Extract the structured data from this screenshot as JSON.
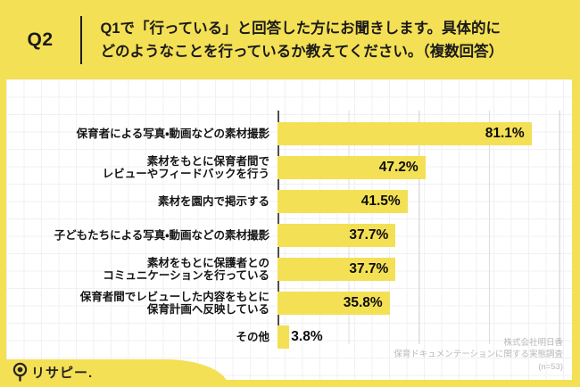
{
  "header": {
    "q_label": "Q2",
    "question_line1": "Q1で「行っている」と回答した方にお聞きします。具体的に",
    "question_line2": "どのようなことを行っているか教えてください。（複数回答）"
  },
  "chart_data": {
    "type": "bar",
    "orientation": "horizontal",
    "title": "Q2 具体的にどのようなことを行っているか（複数回答）",
    "categories": [
      "保育者による写真・動画などの素材撮影",
      "素材をもとに保育者間で\nレビューやフィードバックを行う",
      "素材を園内で掲示する",
      "子どもたちによる写真・動画などの素材撮影",
      "素材をもとに保護者との\nコミュニケーションを行っている",
      "保育者間でレビューした内容をもとに\n保育計画へ反映している",
      "その他"
    ],
    "values": [
      81.1,
      47.2,
      41.5,
      37.7,
      37.7,
      35.8,
      3.8
    ],
    "value_labels": [
      "81.1%",
      "47.2%",
      "41.5%",
      "37.7%",
      "37.7%",
      "35.8%",
      "3.8%"
    ],
    "xlim": [
      0,
      94
    ],
    "grid": "vertical-only",
    "bar_color": "#F4E055"
  },
  "footer": {
    "credit_line1": "株式会社明日香",
    "credit_line2": "保育ドキュメンテーションに関する実態調査",
    "credit_line3": "(n=53)"
  },
  "logo": {
    "text": "リサピー."
  },
  "colors": {
    "accent_yellow": "#F4E055",
    "text_black": "#1a1a1a",
    "credits_gray": "#b9b9b9",
    "axis_gray": "#4f4f4f"
  }
}
